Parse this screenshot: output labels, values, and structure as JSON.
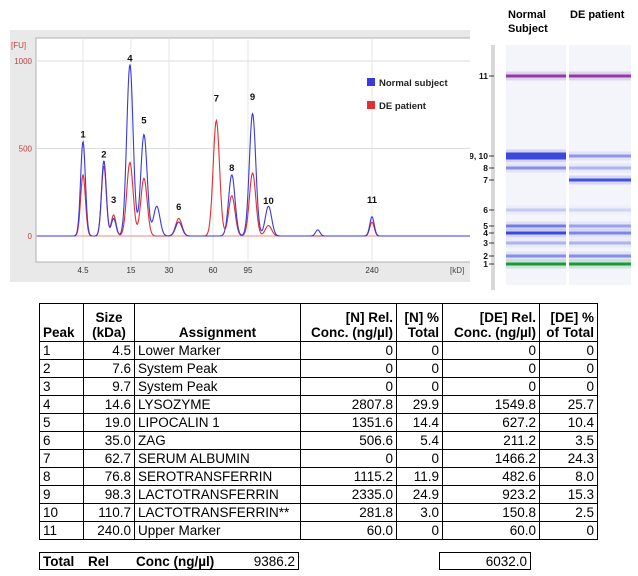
{
  "chart_data": {
    "type": "line",
    "electropherogram": {
      "y_unit": "[FU]",
      "x_unit": "[kD]",
      "y_ticks": [
        "1000",
        "500",
        "0"
      ],
      "ylim": [
        0,
        1050
      ],
      "x_ticks": [
        "4.5",
        "15",
        "30",
        "60",
        "95",
        "240"
      ],
      "legend": [
        "Normal subject",
        "DE patient"
      ],
      "legend_position": "top-right",
      "peak_labels": [
        {
          "label": "1",
          "x": 4.5,
          "y": 540
        },
        {
          "label": "2",
          "x": 7.6,
          "y": 425
        },
        {
          "label": "3",
          "x": 9.7,
          "y": 165
        },
        {
          "label": "4",
          "x": 14.6,
          "y": 975
        },
        {
          "label": "5",
          "x": 19.0,
          "y": 620
        },
        {
          "label": "6",
          "x": 35.0,
          "y": 125
        },
        {
          "label": "7",
          "x": 62.7,
          "y": 745
        },
        {
          "label": "8",
          "x": 76.8,
          "y": 350
        },
        {
          "label": "9",
          "x": 98.3,
          "y": 755
        },
        {
          "label": "10",
          "x": 110.7,
          "y": 160
        },
        {
          "label": "11",
          "x": 240.0,
          "y": 165
        }
      ],
      "series": [
        {
          "name": "Normal subject",
          "color": "#3a3adc",
          "peaks": [
            {
              "x": 4.5,
              "y": 540
            },
            {
              "x": 7.6,
              "y": 430
            },
            {
              "x": 9.7,
              "y": 100
            },
            {
              "x": 14.6,
              "y": 980
            },
            {
              "x": 19.0,
              "y": 580
            },
            {
              "x": 24.0,
              "y": 170
            },
            {
              "x": 35.0,
              "y": 80
            },
            {
              "x": 76.8,
              "y": 350
            },
            {
              "x": 98.3,
              "y": 700
            },
            {
              "x": 110.7,
              "y": 170
            },
            {
              "x": 160.0,
              "y": 35
            },
            {
              "x": 240.0,
              "y": 110
            }
          ]
        },
        {
          "name": "DE patient",
          "color": "#e03030",
          "peaks": [
            {
              "x": 4.5,
              "y": 350
            },
            {
              "x": 7.6,
              "y": 400
            },
            {
              "x": 9.7,
              "y": 120
            },
            {
              "x": 14.6,
              "y": 420
            },
            {
              "x": 19.0,
              "y": 330
            },
            {
              "x": 35.0,
              "y": 100
            },
            {
              "x": 62.7,
              "y": 660
            },
            {
              "x": 76.8,
              "y": 230
            },
            {
              "x": 98.3,
              "y": 360
            },
            {
              "x": 110.7,
              "y": 60
            },
            {
              "x": 240.0,
              "y": 80
            }
          ]
        }
      ]
    },
    "gel": {
      "lanes": [
        "Normal Subject",
        "DE patient"
      ],
      "peak_labels": [
        "11",
        "9, 10",
        "8",
        "7",
        "6",
        "5",
        "4",
        "3",
        "2",
        "1"
      ],
      "bands": [
        {
          "peak": "11",
          "kda": 240.0,
          "normal": 0.9,
          "de": 0.9,
          "color": "#8a2aa0"
        },
        {
          "peak": "9, 10",
          "kda": 98.3,
          "normal": 0.9,
          "de": 0.45,
          "color": "#2a3ad8"
        },
        {
          "peak": "8",
          "kda": 76.8,
          "normal": 0.5,
          "de": 0.3,
          "color": "#2a3ad8"
        },
        {
          "peak": "7",
          "kda": 62.7,
          "normal": 0.0,
          "de": 0.85,
          "color": "#2a3ad8"
        },
        {
          "peak": "6",
          "kda": 35.0,
          "normal": 0.2,
          "de": 0.15,
          "color": "#2a3ad8"
        },
        {
          "peak": "5",
          "kda": 19.0,
          "normal": 0.6,
          "de": 0.4,
          "color": "#2a3ad8"
        },
        {
          "peak": "4",
          "kda": 14.6,
          "normal": 0.9,
          "de": 0.55,
          "color": "#2a3ad8"
        },
        {
          "peak": "3",
          "kda": 9.7,
          "normal": 0.3,
          "de": 0.3,
          "color": "#2a3ad8"
        },
        {
          "peak": "2",
          "kda": 7.6,
          "normal": 0.5,
          "de": 0.5,
          "color": "#2a3ad8"
        },
        {
          "peak": "1",
          "kda": 4.5,
          "normal": 1.0,
          "de": 1.0,
          "color": "#1a9a3a"
        }
      ]
    },
    "table": {
      "headers": [
        {
          "key": "peak",
          "text": "Peak"
        },
        {
          "key": "size",
          "text": "Size (kDa)"
        },
        {
          "key": "assign",
          "text": "Assignment"
        },
        {
          "key": "nconc",
          "text": "[N] Rel. Conc. (ng/µl)"
        },
        {
          "key": "npct",
          "text": "[N] % Total"
        },
        {
          "key": "deconc",
          "text": "[DE] Rel. Conc. (ng/µl)"
        },
        {
          "key": "depct",
          "text": "[DE] % of Total"
        }
      ],
      "rows": [
        [
          "1",
          "4.5",
          "Lower Marker",
          "0",
          "0",
          "0",
          "0"
        ],
        [
          "2",
          "7.6",
          "System Peak",
          "0",
          "0",
          "0",
          "0"
        ],
        [
          "3",
          "9.7",
          "System Peak",
          "0",
          "0",
          "0",
          "0"
        ],
        [
          "4",
          "14.6",
          "LYSOZYME",
          "2807.8",
          "29.9",
          "1549.8",
          "25.7"
        ],
        [
          "5",
          "19.0",
          "LIPOCALIN 1",
          "1351.6",
          "14.4",
          "627.2",
          "10.4"
        ],
        [
          "6",
          "35.0",
          "ZAG",
          "506.6",
          "5.4",
          "211.2",
          "3.5"
        ],
        [
          "7",
          "62.7",
          "SERUM ALBUMIN",
          "0",
          "0",
          "1466.2",
          "24.3"
        ],
        [
          "8",
          "76.8",
          "SEROTRANSFERRIN",
          "1115.2",
          "11.9",
          "482.6",
          "8.0"
        ],
        [
          "9",
          "98.3",
          "LACTOTRANSFERRIN",
          "2335.0",
          "24.9",
          "923.2",
          "15.3"
        ],
        [
          "10",
          "110.7",
          "LACTOTRANSFERRIN**",
          "281.8",
          "3.0",
          "150.8",
          "2.5"
        ],
        [
          "11",
          "240.0",
          "Upper Marker",
          "60.0",
          "0",
          "60.0",
          "0"
        ]
      ],
      "total": {
        "label_1": "Total",
        "label_2": "Rel",
        "label_3": "Conc (ng/µl)",
        "n_value": "9386.2",
        "de_value": "6032.0"
      }
    }
  }
}
